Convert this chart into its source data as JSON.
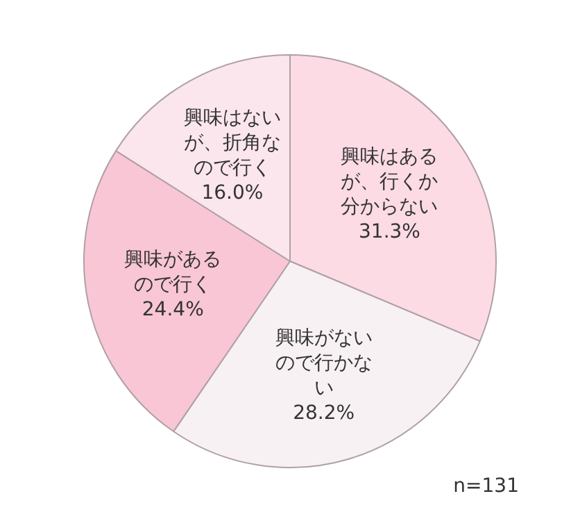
{
  "chart_data": {
    "type": "pie",
    "categories": [
      "興味はあるが、行くか分からない",
      "興味がないので行かない",
      "興味があるので行く",
      "興味はないが、折角なので行く"
    ],
    "values": [
      31.3,
      28.2,
      24.4,
      16.0
    ],
    "value_labels": [
      "31.3%",
      "28.2%",
      "24.4%",
      "16.0%"
    ],
    "colors": [
      "#fcdbe5",
      "#f8f1f4",
      "#f9c6d5",
      "#fbe6ed"
    ],
    "annotations": [
      "n=131"
    ],
    "legend": false
  }
}
